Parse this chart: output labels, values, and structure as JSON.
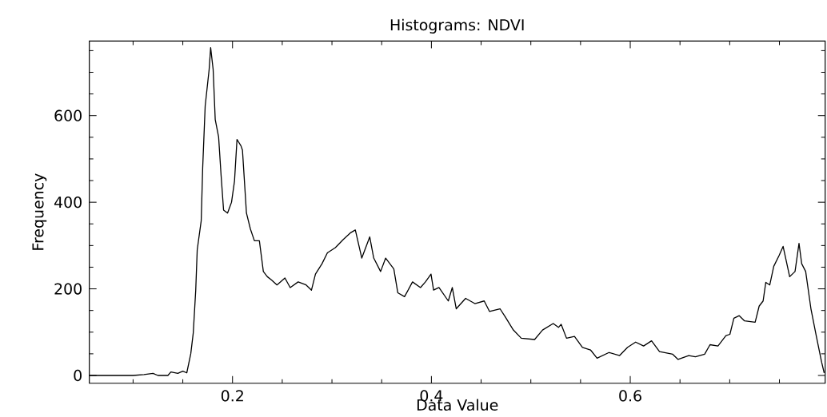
{
  "chart_data": {
    "type": "line",
    "title": "Histograms: NDVI",
    "xlabel": "Data Value",
    "ylabel": "Frequency",
    "color": "#000000",
    "x": [
      0.056,
      0.1,
      0.111,
      0.12,
      0.125,
      0.135,
      0.138,
      0.145,
      0.15,
      0.154,
      0.158,
      0.1605,
      0.163,
      0.1645,
      0.1685,
      0.17,
      0.1725,
      0.1765,
      0.178,
      0.1805,
      0.1826,
      0.186,
      0.1885,
      0.191,
      0.195,
      0.199,
      0.202,
      0.2045,
      0.2085,
      0.21,
      0.214,
      0.218,
      0.222,
      0.227,
      0.231,
      0.235,
      0.239,
      0.2447,
      0.2527,
      0.258,
      0.266,
      0.274,
      0.2794,
      0.2834,
      0.29,
      0.2954,
      0.3034,
      0.3114,
      0.319,
      0.3235,
      0.33,
      0.338,
      0.342,
      0.3489,
      0.354,
      0.3622,
      0.3662,
      0.373,
      0.381,
      0.389,
      0.394,
      0.3996,
      0.4022,
      0.4076,
      0.417,
      0.421,
      0.425,
      0.4344,
      0.4437,
      0.4531,
      0.4584,
      0.469,
      0.4744,
      0.4824,
      0.4904,
      0.5038,
      0.5118,
      0.5225,
      0.5278,
      0.5305,
      0.5359,
      0.5439,
      0.5519,
      0.56,
      0.5666,
      0.5786,
      0.5893,
      0.5973,
      0.6054,
      0.6134,
      0.6214,
      0.6294,
      0.6427,
      0.6481,
      0.6588,
      0.6655,
      0.6748,
      0.6802,
      0.6882,
      0.6962,
      0.7002,
      0.7042,
      0.7096,
      0.7149,
      0.7256,
      0.7296,
      0.7336,
      0.7363,
      0.7403,
      0.7443,
      0.7497,
      0.7537,
      0.7603,
      0.7657,
      0.7697,
      0.7724,
      0.7764,
      0.7817,
      0.787,
      0.7924,
      0.795
    ],
    "values": [
      0,
      0,
      2,
      5,
      0,
      0,
      8,
      5,
      10,
      6,
      50,
      98,
      197,
      290,
      357,
      480,
      622,
      707,
      757,
      707,
      591,
      551,
      462,
      382,
      375,
      400,
      449,
      545,
      530,
      520,
      375,
      338,
      311,
      311,
      240,
      228,
      221,
      209,
      225,
      203,
      216,
      209,
      197,
      234,
      258,
      283,
      295,
      314,
      330,
      336,
      271,
      320,
      271,
      240,
      271,
      246,
      191,
      182,
      216,
      203,
      216,
      234,
      197,
      203,
      172,
      203,
      154,
      178,
      166,
      172,
      148,
      154,
      135,
      105,
      86,
      83,
      105,
      120,
      111,
      118,
      86,
      90,
      65,
      59,
      40,
      53,
      46,
      65,
      77,
      68,
      80,
      55,
      49,
      37,
      46,
      43,
      49,
      71,
      68,
      92,
      95,
      132,
      138,
      126,
      123,
      160,
      172,
      215,
      209,
      252,
      277,
      298,
      228,
      240,
      305,
      258,
      240,
      154,
      92,
      31,
      6
    ],
    "xlim": [
      0.056,
      0.796
    ],
    "ylim": [
      -18,
      772
    ],
    "xticks": [
      {
        "value": 0.1,
        "label": null
      },
      {
        "value": 0.15,
        "label": null
      },
      0.2,
      {
        "value": 0.25,
        "label": null
      },
      {
        "value": 0.3,
        "label": null
      },
      {
        "value": 0.35,
        "label": null
      },
      0.4,
      {
        "value": 0.45,
        "label": null
      },
      {
        "value": 0.5,
        "label": null
      },
      {
        "value": 0.55,
        "label": null
      },
      0.6,
      {
        "value": 0.65,
        "label": null
      },
      {
        "value": 0.7,
        "label": null
      },
      {
        "value": 0.75,
        "label": null
      }
    ],
    "yticks": [
      0,
      {
        "value": 50,
        "label": null
      },
      {
        "value": 100,
        "label": null
      },
      {
        "value": 150,
        "label": null
      },
      200,
      {
        "value": 250,
        "label": null
      },
      {
        "value": 300,
        "label": null
      },
      {
        "value": 350,
        "label": null
      },
      400,
      {
        "value": 450,
        "label": null
      },
      {
        "value": 500,
        "label": null
      },
      {
        "value": 550,
        "label": null
      },
      600,
      {
        "value": 650,
        "label": null
      },
      {
        "value": 700,
        "label": null
      },
      {
        "value": 750,
        "label": null
      }
    ]
  }
}
